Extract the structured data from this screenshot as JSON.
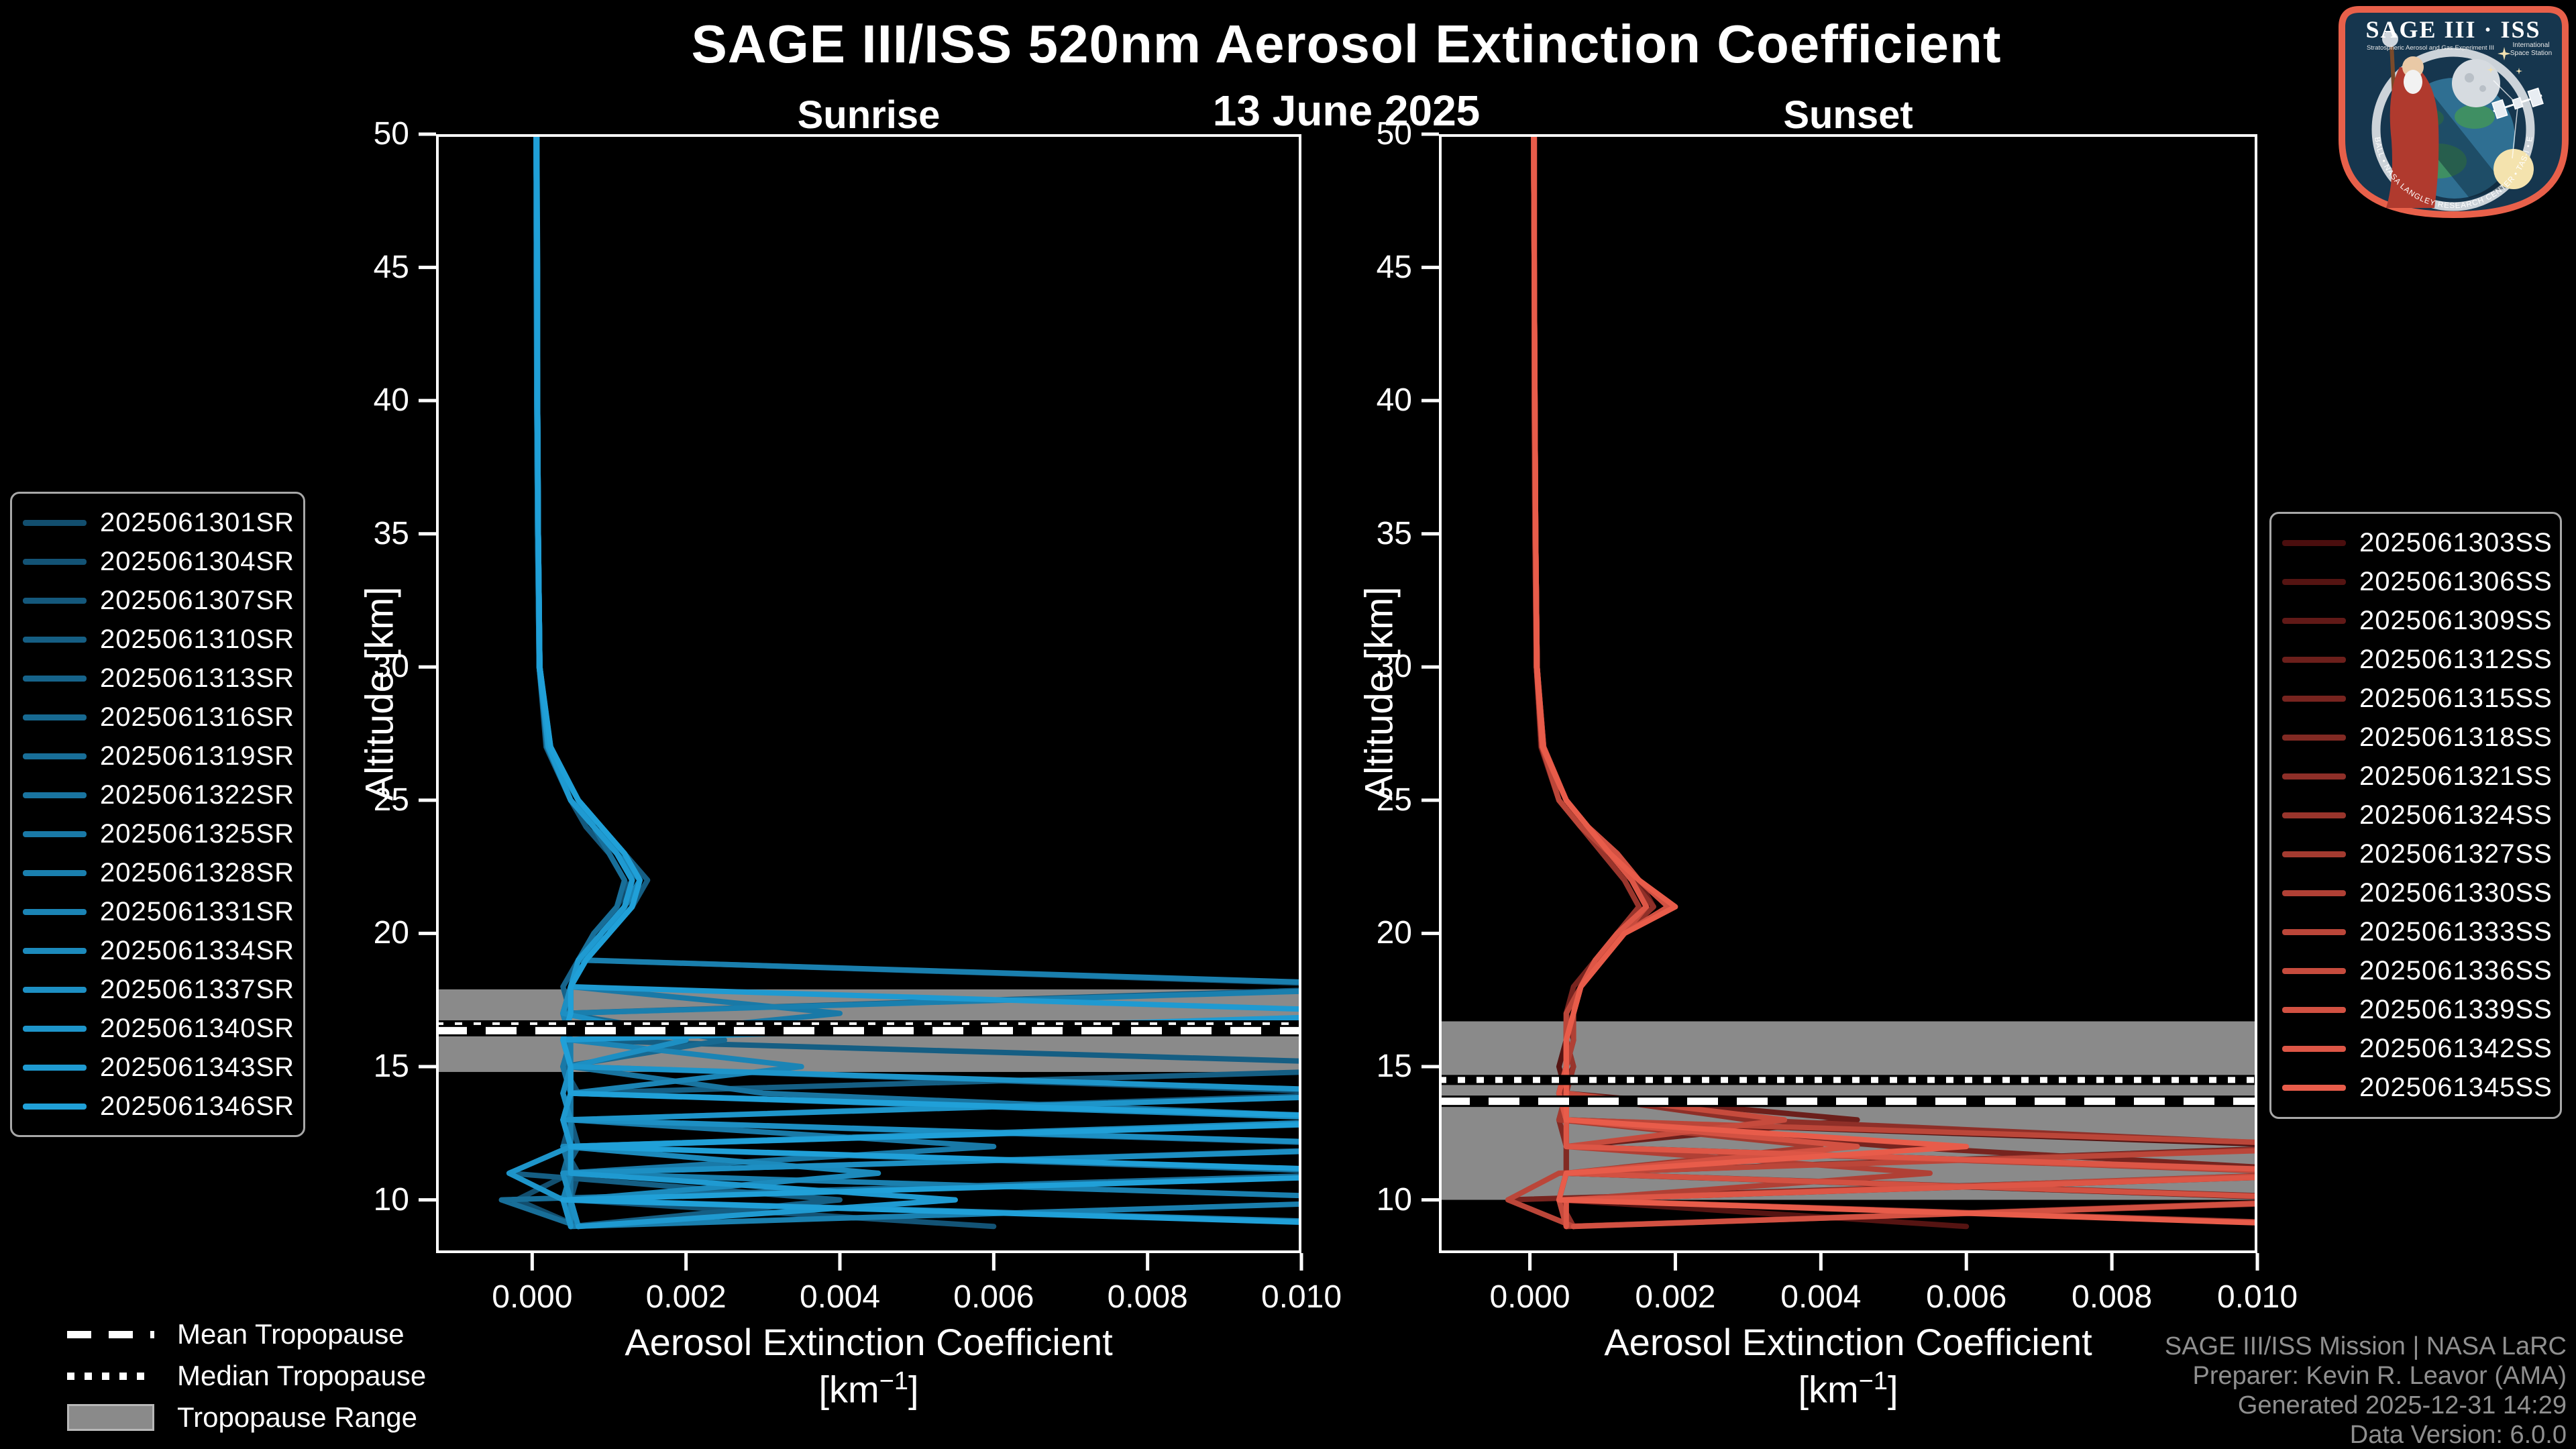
{
  "title": "SAGE III/ISS 520nm Aerosol Extinction Coefficient",
  "subtitle": "13 June 2025",
  "panels": {
    "sunrise_title": "Sunrise",
    "sunset_title": "Sunset"
  },
  "axis": {
    "ylabel": "Altitude [km]",
    "xlabel_line1": "Aerosol Extinction Coefficient",
    "xlabel_unit_open": "[km",
    "xlabel_unit_sup": "−1",
    "xlabel_unit_close": "]"
  },
  "tropopause_legend": {
    "mean": "Mean Tropopause",
    "median": "Median Tropopause",
    "range": "Tropopause Range"
  },
  "credit": {
    "line1": "SAGE III/ISS Mission | NASA LaRC",
    "line2": "Preparer: Kevin R. Leavor (AMA)",
    "line3": "Generated 2025-12-31 14:29",
    "line4": "Data Version: 6.0.0"
  },
  "logo": {
    "title": "SAGE III · ISS",
    "subtitle_left": "Stratospheric Aerosol and Gas Experiment III",
    "subtitle_right_1": "International",
    "subtitle_right_2": "Space Station",
    "ring_text": "BALL • NASA LANGLEY RESEARCH CENTER • TAS-I • ESA"
  },
  "colors": {
    "background": "#000000",
    "foreground": "#ffffff",
    "band": "#8a8a8a",
    "credit": "#8f8f8f",
    "legend_border": "#a8a8a8"
  },
  "chart_data": [
    {
      "panel": "Sunrise",
      "type": "line",
      "title": "Sunrise",
      "xlabel": "Aerosol Extinction Coefficient [km-1]",
      "ylabel": "Altitude [km]",
      "xlim": [
        -0.00125,
        0.01
      ],
      "ylim": [
        8,
        50
      ],
      "xticks": [
        0,
        0.002,
        0.004,
        0.006,
        0.008,
        0.01
      ],
      "xtick_labels": [
        "0.000",
        "0.002",
        "0.004",
        "0.006",
        "0.008",
        "0.010"
      ],
      "yticks": [
        10,
        15,
        20,
        25,
        30,
        35,
        40,
        45,
        50
      ],
      "grid": false,
      "ext_scale": 0.0001,
      "altitudes": [
        50,
        45,
        40,
        35,
        30,
        27,
        25,
        24,
        23,
        22,
        21,
        20,
        19,
        18,
        17,
        16,
        15,
        14,
        13,
        12,
        11,
        10,
        9
      ],
      "tropopause": {
        "mean": 16.35,
        "median": 16.55,
        "range": [
          14.8,
          17.9
        ]
      },
      "series": [
        {
          "name": "2025061301SR",
          "color": "#124E6E",
          "ext": [
            0.5,
            0.6,
            0.6,
            0.7,
            0.9,
            2.0,
            5,
            8,
            11,
            13,
            11,
            9,
            7,
            5,
            4,
            5,
            4,
            6,
            120,
            4,
            5,
            -2,
            6
          ]
        },
        {
          "name": "2025061304SR",
          "color": "#135375",
          "ext": [
            0.5,
            0.6,
            0.7,
            0.8,
            1.0,
            2.2,
            6,
            9,
            12,
            14,
            12,
            9,
            6,
            5,
            5,
            4,
            5,
            110,
            5,
            4,
            6,
            5,
            60
          ]
        },
        {
          "name": "2025061307SR",
          "color": "#14587C",
          "ext": [
            0.5,
            0.5,
            0.6,
            0.7,
            0.9,
            1.8,
            5,
            7,
            10,
            12,
            13,
            10,
            7,
            115,
            4,
            5,
            4,
            5,
            5,
            6,
            4,
            5,
            5
          ]
        },
        {
          "name": "2025061310SR",
          "color": "#155E83",
          "ext": [
            0.6,
            0.6,
            0.7,
            0.8,
            1.0,
            2.4,
            6,
            9,
            12,
            15,
            13,
            10,
            7,
            5,
            4,
            5,
            125,
            5,
            4,
            5,
            -3,
            40,
            5
          ]
        },
        {
          "name": "2025061313SR",
          "color": "#16638A",
          "ext": [
            0.5,
            0.6,
            0.6,
            0.8,
            0.9,
            2.0,
            5,
            8,
            11,
            13,
            12,
            9,
            6,
            4,
            5,
            4,
            5,
            5,
            4,
            118,
            5,
            4,
            6
          ]
        },
        {
          "name": "2025061316SR",
          "color": "#176991",
          "ext": [
            0.5,
            0.6,
            0.7,
            0.8,
            1.0,
            2.1,
            6,
            8,
            11,
            14,
            12,
            9,
            7,
            5,
            4,
            25,
            4,
            5,
            122,
            5,
            4,
            5,
            5
          ]
        },
        {
          "name": "2025061319SR",
          "color": "#186E98",
          "ext": [
            0.5,
            0.6,
            0.6,
            0.7,
            0.9,
            1.9,
            5,
            8,
            10,
            12,
            11,
            8,
            6,
            5,
            4,
            5,
            4,
            5,
            5,
            5,
            112,
            -4,
            6
          ]
        },
        {
          "name": "2025061322SR",
          "color": "#1974A0",
          "ext": [
            0.6,
            0.6,
            0.7,
            0.8,
            1.0,
            2.3,
            6,
            9,
            12,
            14,
            13,
            10,
            7,
            5,
            5,
            4,
            5,
            30,
            115,
            4,
            5,
            5,
            5
          ]
        },
        {
          "name": "2025061325SR",
          "color": "#1979A7",
          "ext": [
            0.5,
            0.6,
            0.7,
            0.8,
            0.9,
            2.0,
            5,
            8,
            11,
            13,
            12,
            9,
            7,
            5,
            40,
            5,
            4,
            5,
            5,
            60,
            4,
            5,
            6
          ]
        },
        {
          "name": "2025061328SR",
          "color": "#1A7FAE",
          "ext": [
            0.5,
            0.6,
            0.6,
            0.7,
            1.0,
            2.2,
            6,
            9,
            11,
            13,
            12,
            9,
            6,
            120,
            4,
            5,
            5,
            4,
            5,
            5,
            5,
            118,
            5
          ]
        },
        {
          "name": "2025061331SR",
          "color": "#1B84B5",
          "ext": [
            0.6,
            0.6,
            0.7,
            0.8,
            1.0,
            2.0,
            5,
            8,
            11,
            14,
            12,
            9,
            7,
            5,
            4,
            5,
            35,
            5,
            4,
            5,
            5,
            4,
            125
          ]
        },
        {
          "name": "2025061334SR",
          "color": "#1C8ABC",
          "ext": [
            0.5,
            0.6,
            0.7,
            0.8,
            0.9,
            2.1,
            6,
            8,
            11,
            13,
            12,
            9,
            7,
            5,
            5,
            4,
            5,
            5,
            112,
            4,
            45,
            5,
            5
          ]
        },
        {
          "name": "2025061337SR",
          "color": "#1D8FC3",
          "ext": [
            0.5,
            0.6,
            0.6,
            0.8,
            1.0,
            2.2,
            5,
            8,
            11,
            13,
            12,
            10,
            7,
            5,
            4,
            20,
            5,
            4,
            5,
            122,
            4,
            5,
            6
          ]
        },
        {
          "name": "2025061340SR",
          "color": "#1E95CA",
          "ext": [
            0.6,
            0.6,
            0.7,
            0.8,
            1.0,
            2.3,
            6,
            9,
            12,
            14,
            13,
            10,
            7,
            5,
            5,
            4,
            5,
            118,
            4,
            5,
            -3,
            4,
            5
          ]
        },
        {
          "name": "2025061343SR",
          "color": "#1F9AD1",
          "ext": [
            0.5,
            0.6,
            0.7,
            0.8,
            0.9,
            2.1,
            5,
            8,
            11,
            13,
            12,
            9,
            6,
            5,
            118,
            4,
            5,
            5,
            4,
            5,
            5,
            55,
            6
          ]
        },
        {
          "name": "2025061346SR",
          "color": "#20A0D8",
          "ext": [
            0.6,
            0.7,
            0.7,
            0.8,
            1.0,
            2.4,
            6,
            9,
            12,
            14,
            13,
            10,
            7,
            5,
            5,
            4,
            5,
            5,
            120,
            5,
            120,
            4,
            118
          ]
        }
      ]
    },
    {
      "panel": "Sunset",
      "type": "line",
      "title": "Sunset",
      "xlabel": "Aerosol Extinction Coefficient [km-1]",
      "ylabel": "Altitude [km]",
      "xlim": [
        -0.00125,
        0.01
      ],
      "ylim": [
        8,
        50
      ],
      "xticks": [
        0,
        0.002,
        0.004,
        0.006,
        0.008,
        0.01
      ],
      "xtick_labels": [
        "0.000",
        "0.002",
        "0.004",
        "0.006",
        "0.008",
        "0.010"
      ],
      "yticks": [
        10,
        15,
        20,
        25,
        30,
        35,
        40,
        45,
        50
      ],
      "grid": false,
      "ext_scale": 0.0001,
      "altitudes": [
        50,
        45,
        40,
        35,
        30,
        27,
        25,
        24,
        23,
        22,
        21,
        20,
        19,
        18,
        17,
        16,
        15,
        14,
        13,
        12,
        11,
        10,
        9
      ],
      "tropopause": {
        "mean": 13.7,
        "median": 14.5,
        "range": [
          10.0,
          16.7
        ]
      },
      "series": [
        {
          "name": "2025061303SS",
          "color": "#4A0E0E",
          "ext": [
            0.5,
            0.6,
            0.6,
            0.7,
            0.9,
            1.5,
            4,
            7,
            10,
            13,
            15,
            12,
            9,
            7,
            6,
            5,
            5,
            4,
            5,
            5,
            115,
            4,
            6
          ]
        },
        {
          "name": "2025061306SS",
          "color": "#551412",
          "ext": [
            0.5,
            0.6,
            0.7,
            0.8,
            1.0,
            1.8,
            5,
            8,
            11,
            14,
            16,
            13,
            9,
            7,
            6,
            5,
            4,
            5,
            5,
            110,
            5,
            4,
            60
          ]
        },
        {
          "name": "2025061309SS",
          "color": "#611917",
          "ext": [
            0.5,
            0.6,
            0.6,
            0.7,
            0.9,
            1.6,
            4,
            7,
            11,
            14,
            16,
            12,
            9,
            7,
            5,
            6,
            5,
            4,
            5,
            5,
            118,
            5,
            5
          ]
        },
        {
          "name": "2025061312SS",
          "color": "#6C1F1B",
          "ext": [
            0.6,
            0.6,
            0.7,
            0.8,
            1.0,
            1.9,
            5,
            8,
            12,
            15,
            17,
            13,
            10,
            7,
            6,
            5,
            5,
            5,
            45,
            5,
            5,
            112,
            5
          ]
        },
        {
          "name": "2025061315SS",
          "color": "#77241F",
          "ext": [
            0.5,
            0.6,
            0.6,
            0.8,
            0.9,
            1.6,
            4,
            7,
            10,
            13,
            15,
            12,
            9,
            6,
            5,
            5,
            6,
            4,
            5,
            50,
            115,
            -3,
            6
          ]
        },
        {
          "name": "2025061318SS",
          "color": "#822A23",
          "ext": [
            0.5,
            0.6,
            0.7,
            0.8,
            1.0,
            1.7,
            5,
            8,
            11,
            14,
            16,
            13,
            9,
            7,
            6,
            5,
            5,
            5,
            4,
            5,
            5,
            118,
            5
          ]
        },
        {
          "name": "2025061321SS",
          "color": "#8E2F28",
          "ext": [
            0.6,
            0.6,
            0.7,
            0.8,
            1.0,
            1.8,
            5,
            8,
            11,
            14,
            17,
            13,
            10,
            7,
            6,
            5,
            5,
            4,
            30,
            112,
            5,
            4,
            6
          ]
        },
        {
          "name": "2025061324SS",
          "color": "#99352C",
          "ext": [
            0.5,
            0.6,
            0.6,
            0.7,
            0.9,
            1.6,
            4,
            7,
            10,
            13,
            15,
            12,
            9,
            7,
            5,
            5,
            6,
            5,
            5,
            5,
            110,
            5,
            120
          ]
        },
        {
          "name": "2025061327SS",
          "color": "#A43B30",
          "ext": [
            0.5,
            0.6,
            0.7,
            0.8,
            1.0,
            1.8,
            5,
            8,
            11,
            14,
            16,
            13,
            9,
            7,
            6,
            5,
            5,
            5,
            4,
            40,
            5,
            115,
            5
          ]
        },
        {
          "name": "2025061330SS",
          "color": "#B04035",
          "ext": [
            0.6,
            0.6,
            0.7,
            0.8,
            1.0,
            1.9,
            5,
            8,
            12,
            15,
            19,
            13,
            10,
            7,
            6,
            6,
            5,
            5,
            5,
            5,
            55,
            5,
            118
          ]
        },
        {
          "name": "2025061333SS",
          "color": "#BB4639",
          "ext": [
            0.5,
            0.6,
            0.6,
            0.8,
            0.9,
            1.7,
            4,
            7,
            11,
            14,
            16,
            12,
            9,
            7,
            5,
            5,
            5,
            4,
            5,
            118,
            4,
            -3,
            6
          ]
        },
        {
          "name": "2025061336SS",
          "color": "#C64B3D",
          "ext": [
            0.5,
            0.6,
            0.7,
            0.8,
            1.0,
            1.8,
            5,
            8,
            11,
            14,
            16,
            13,
            10,
            7,
            6,
            5,
            5,
            5,
            35,
            5,
            112,
            4,
            5
          ]
        },
        {
          "name": "2025061339SS",
          "color": "#D25142",
          "ext": [
            0.6,
            0.6,
            0.7,
            0.8,
            1.0,
            1.9,
            5,
            8,
            12,
            15,
            19,
            13,
            10,
            7,
            6,
            5,
            5,
            5,
            5,
            45,
            5,
            115,
            6
          ]
        },
        {
          "name": "2025061342SS",
          "color": "#DD5646",
          "ext": [
            0.5,
            0.6,
            0.7,
            0.8,
            0.9,
            1.7,
            5,
            8,
            11,
            14,
            16,
            12,
            9,
            7,
            6,
            5,
            5,
            4,
            5,
            5,
            118,
            5,
            5
          ]
        },
        {
          "name": "2025061345SS",
          "color": "#E85C4A",
          "ext": [
            0.6,
            0.6,
            0.7,
            0.8,
            1.0,
            1.8,
            5,
            8,
            11,
            15,
            20,
            13,
            10,
            7,
            6,
            5,
            5,
            5,
            5,
            60,
            5,
            4,
            115
          ]
        }
      ]
    }
  ]
}
